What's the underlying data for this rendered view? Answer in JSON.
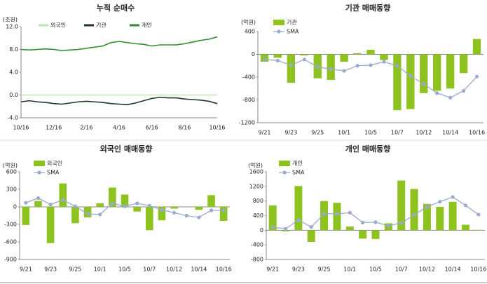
{
  "chart_data": [
    {
      "type": "line",
      "title": "누적 순매수",
      "unit": "(조원)",
      "categories": [
        "10/16",
        null,
        null,
        null,
        "12/16",
        null,
        null,
        null,
        "2/16",
        null,
        null,
        null,
        "4/16",
        null,
        null,
        null,
        "6/16",
        null,
        null,
        null,
        "8/16",
        null,
        null,
        null,
        "10/16"
      ],
      "series": [
        {
          "name": "외국인",
          "color": "#b8e6b0",
          "values": [
            0,
            0,
            0,
            0,
            0,
            0,
            0,
            0,
            0,
            0,
            0,
            0,
            0,
            0,
            0,
            0,
            0,
            0,
            0,
            0,
            0,
            0,
            0,
            0,
            0
          ]
        },
        {
          "name": "기관",
          "color": "#1c3a1c",
          "values": [
            -1.2,
            -1.0,
            -1.2,
            -1.3,
            -1.5,
            -1.6,
            -1.4,
            -1.2,
            -1.1,
            -1.2,
            -1.3,
            -1.5,
            -1.6,
            -1.7,
            -1.4,
            -1.0,
            -0.6,
            -0.4,
            -0.5,
            -0.5,
            -0.7,
            -0.8,
            -0.9,
            -1.1,
            -1.5
          ]
        },
        {
          "name": "개인",
          "color": "#2e8b2e",
          "values": [
            8.0,
            7.9,
            8.0,
            8.1,
            8.0,
            7.8,
            7.9,
            8.0,
            8.2,
            8.4,
            8.6,
            9.2,
            9.4,
            9.2,
            9.0,
            8.9,
            8.6,
            8.8,
            8.8,
            8.8,
            9.0,
            9.3,
            9.6,
            9.8,
            10.2
          ]
        }
      ],
      "ylim": [
        -4,
        12
      ],
      "yticks": [
        {
          "value": 12,
          "label": "12.0"
        },
        {
          "value": 8,
          "label": "8.0"
        },
        {
          "value": 4,
          "label": "4.0"
        },
        {
          "value": 0,
          "label": "0.0"
        },
        {
          "value": -4,
          "label": "-4.0"
        }
      ]
    },
    {
      "type": "combo",
      "title": "기관 매매동향",
      "unit": "(억원)",
      "categories": [
        "9/21",
        null,
        "9/23",
        null,
        "9/25",
        null,
        "10/1",
        null,
        "10/5",
        null,
        "10/7",
        null,
        "10/12",
        null,
        "10/14",
        null,
        "10/16"
      ],
      "series": [
        {
          "name": "기관",
          "color": "#8dc21f",
          "kind": "bar",
          "values": [
            -130,
            -60,
            -500,
            -20,
            -420,
            -450,
            -130,
            20,
            80,
            -100,
            -980,
            -960,
            -680,
            -640,
            -600,
            -330,
            270
          ]
        },
        {
          "name": "SMA",
          "color": "#9aaad0",
          "kind": "line",
          "values": [
            -90,
            -110,
            -190,
            -90,
            -220,
            -260,
            -290,
            -200,
            -190,
            -130,
            -200,
            -380,
            -520,
            -680,
            -760,
            -640,
            -390
          ]
        }
      ],
      "ylim": [
        -1200,
        400
      ],
      "yticks": [
        400,
        0,
        -400,
        -800,
        -1200
      ]
    },
    {
      "type": "combo",
      "title": "외국인 매매동향",
      "unit": "(억원)",
      "categories": [
        "9/21",
        null,
        "9/23",
        null,
        "9/25",
        null,
        "10/1",
        null,
        "10/5",
        null,
        "10/7",
        null,
        "10/12",
        null,
        "10/14",
        null,
        "10/16"
      ],
      "series": [
        {
          "name": "외국인",
          "color": "#8dc21f",
          "kind": "bar",
          "values": [
            -310,
            100,
            -620,
            400,
            -280,
            -180,
            60,
            330,
            210,
            -80,
            -400,
            -230,
            -30,
            0,
            -50,
            200,
            -240
          ]
        },
        {
          "name": "SMA",
          "color": "#9aaad0",
          "kind": "line",
          "values": [
            70,
            150,
            40,
            120,
            10,
            -120,
            -130,
            60,
            10,
            60,
            20,
            -50,
            -100,
            -150,
            -180,
            -60,
            -60
          ]
        }
      ],
      "ylim": [
        -900,
        600
      ],
      "yticks": [
        600,
        300,
        0,
        -300,
        -600,
        -900
      ]
    },
    {
      "type": "combo",
      "title": "개인 매매동향",
      "unit": "(억원)",
      "categories": [
        "9/21",
        null,
        "9/23",
        null,
        "9/25",
        null,
        "10/1",
        null,
        "10/5",
        null,
        "10/7",
        null,
        "10/12",
        null,
        "10/14",
        null,
        "10/16"
      ],
      "series": [
        {
          "name": "개인",
          "color": "#8dc21f",
          "kind": "bar",
          "values": [
            680,
            -30,
            1210,
            -320,
            800,
            750,
            100,
            -230,
            -240,
            190,
            1360,
            1130,
            720,
            640,
            780,
            150,
            10
          ]
        },
        {
          "name": "SMA",
          "color": "#9aaad0",
          "kind": "line",
          "values": [
            80,
            40,
            280,
            90,
            450,
            450,
            480,
            210,
            220,
            120,
            200,
            420,
            640,
            780,
            910,
            680,
            430
          ]
        }
      ],
      "ylim": [
        -800,
        1600
      ],
      "yticks": [
        1600,
        1200,
        800,
        400,
        0,
        -400,
        -800
      ]
    }
  ]
}
